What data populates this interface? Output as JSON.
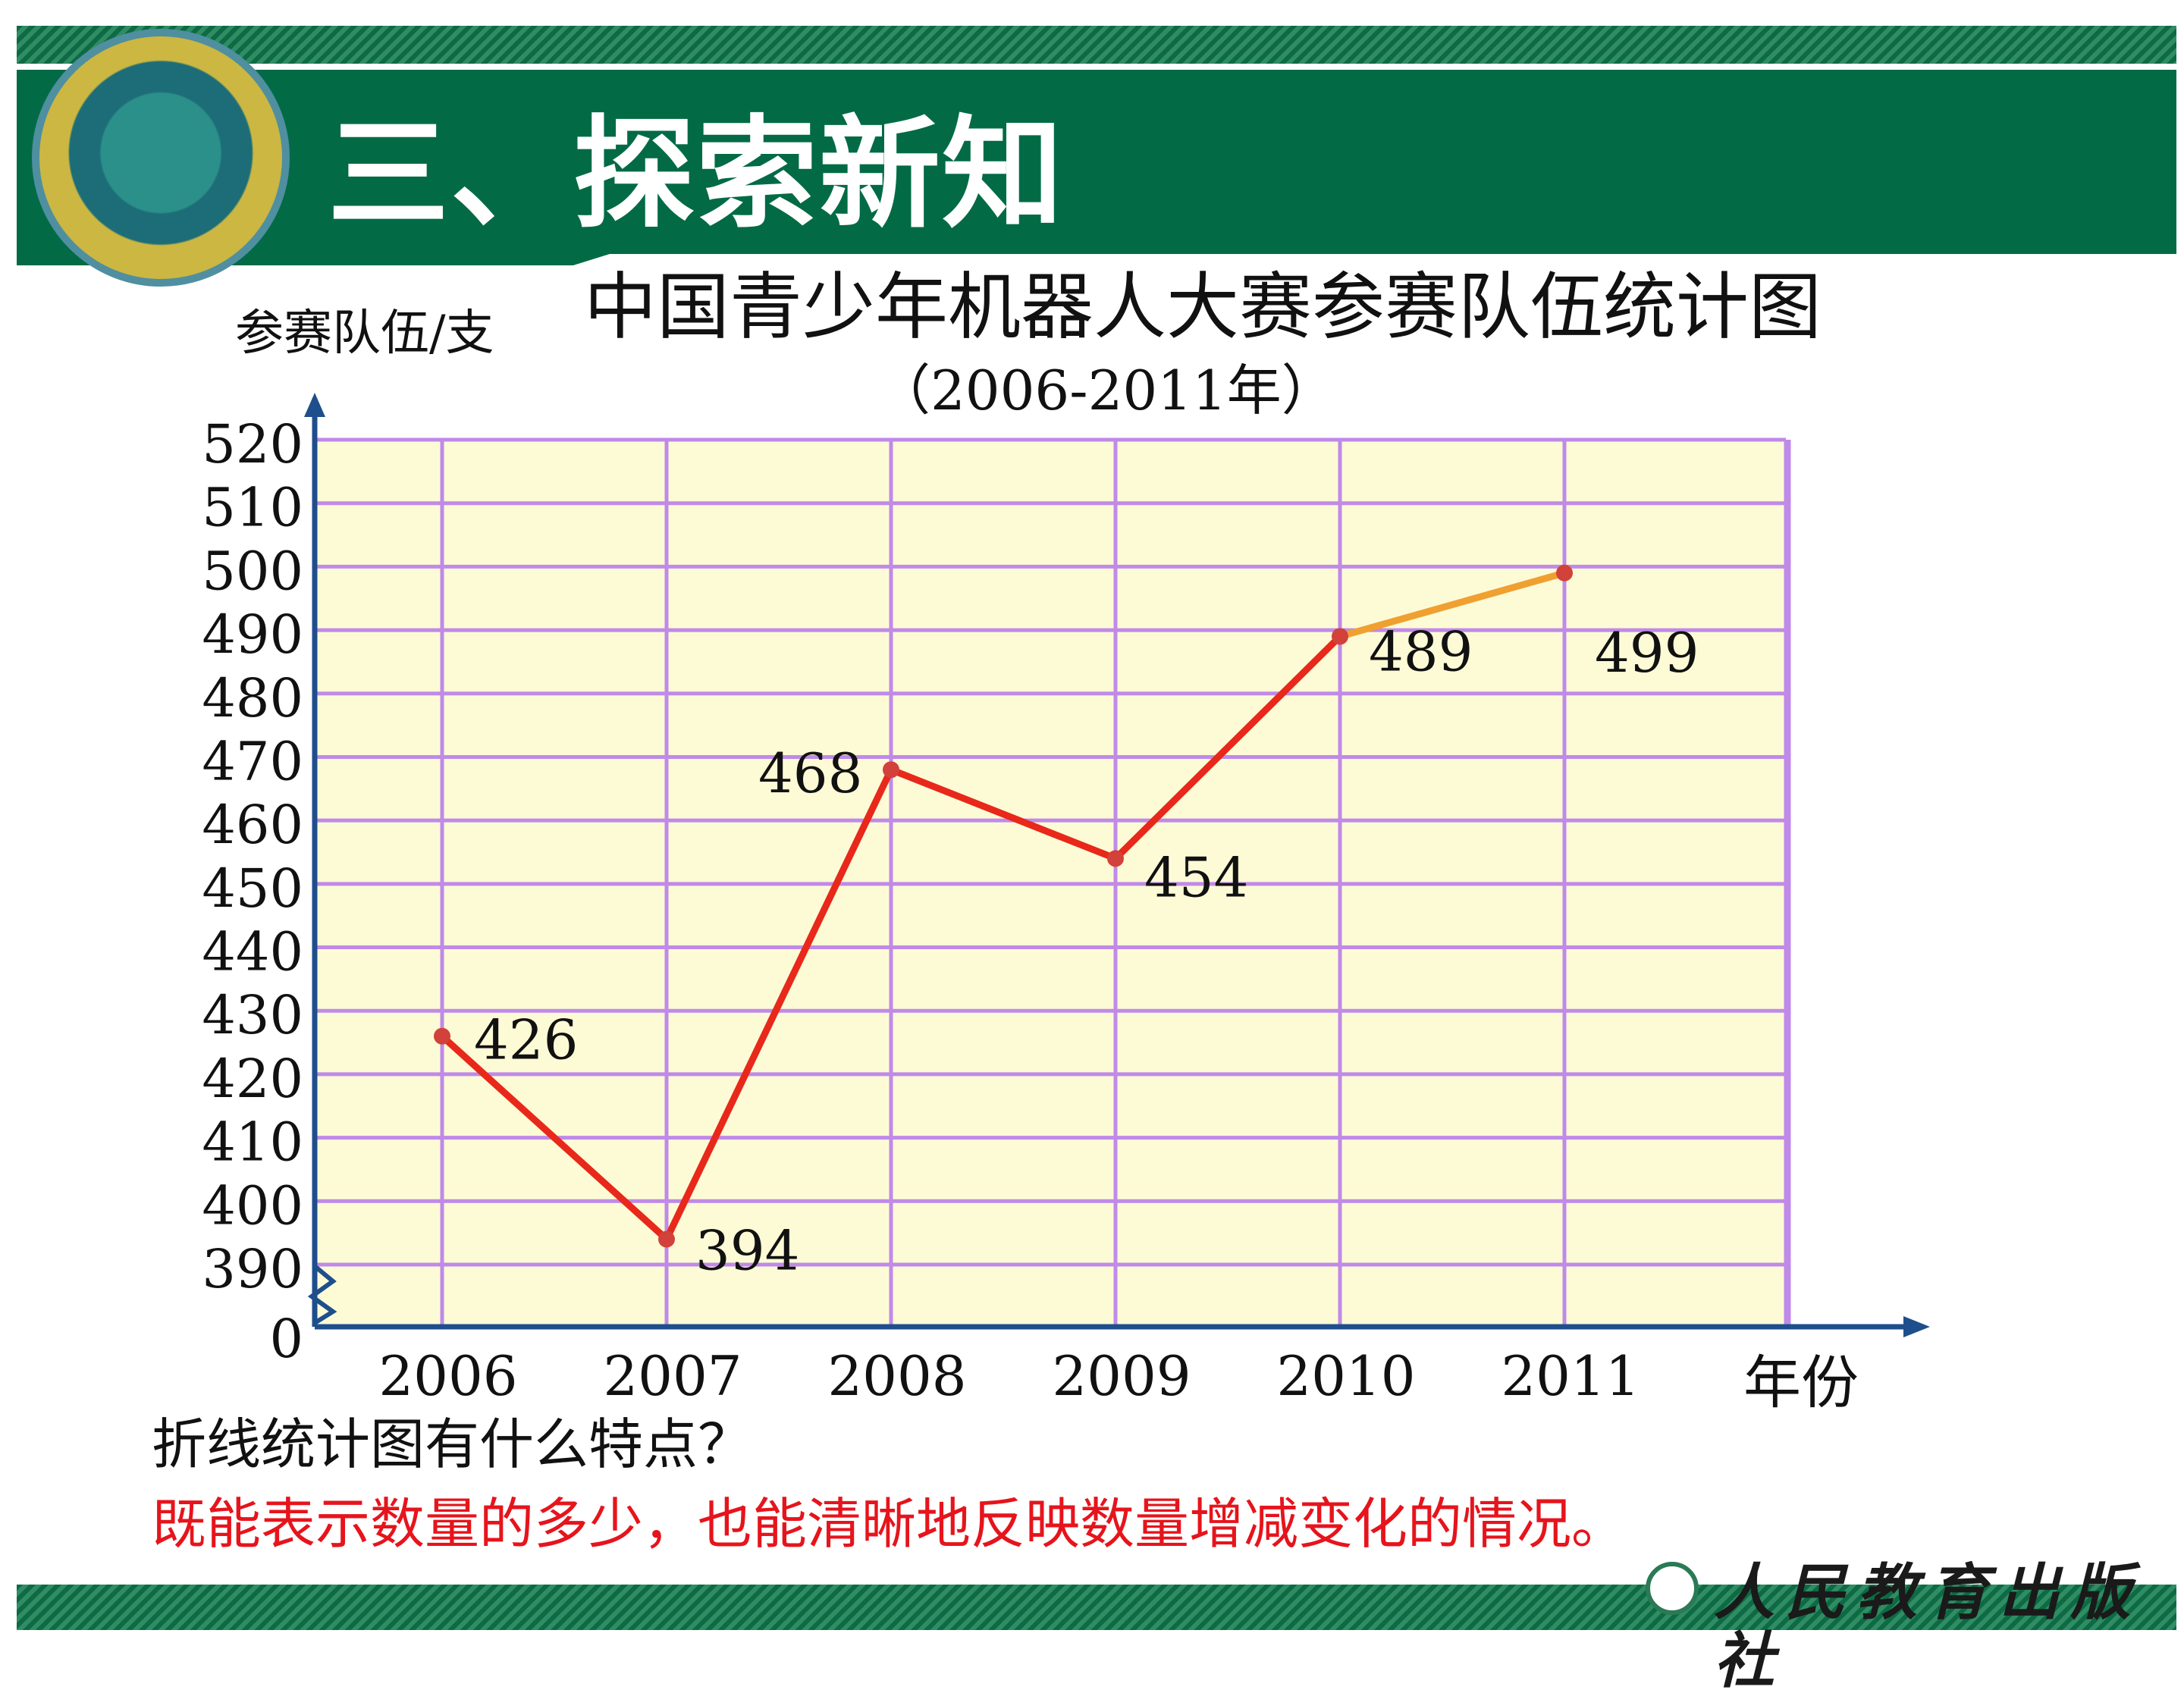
{
  "header": {
    "title": "三、探索新知"
  },
  "chart_data": {
    "type": "line",
    "title": "中国青少年机器人大赛参赛队伍统计图",
    "subtitle": "（2006-2011年）",
    "ylabel": "参赛队伍/支",
    "xlabel": "年份",
    "categories": [
      "2006",
      "2007",
      "2008",
      "2009",
      "2010",
      "2011"
    ],
    "series": [
      {
        "values": [
          426,
          394,
          468,
          454,
          489,
          499
        ]
      }
    ],
    "data_labels": [
      "426",
      "394",
      "468",
      "454",
      "489",
      "499"
    ],
    "y_ticks": [
      "0",
      "390",
      "400",
      "410",
      "420",
      "430",
      "440",
      "450",
      "460",
      "470",
      "480",
      "490",
      "500",
      "510",
      "520"
    ],
    "ylim": [
      390,
      520
    ],
    "y_axis_break": true,
    "grid": true,
    "colors": {
      "plot_background": "#fdfbd6",
      "grid": "#c08ae8",
      "axis": "#1f4e8c",
      "line": "#e8281a",
      "line_last_segment": "#f0a030",
      "marker": "#d2413a"
    }
  },
  "footer": {
    "question": "折线统计图有什么特点？",
    "answer": "既能表示数量的多少，也能清晰地反映数量增减变化的情况。",
    "publisher": "人民教育出版社"
  }
}
